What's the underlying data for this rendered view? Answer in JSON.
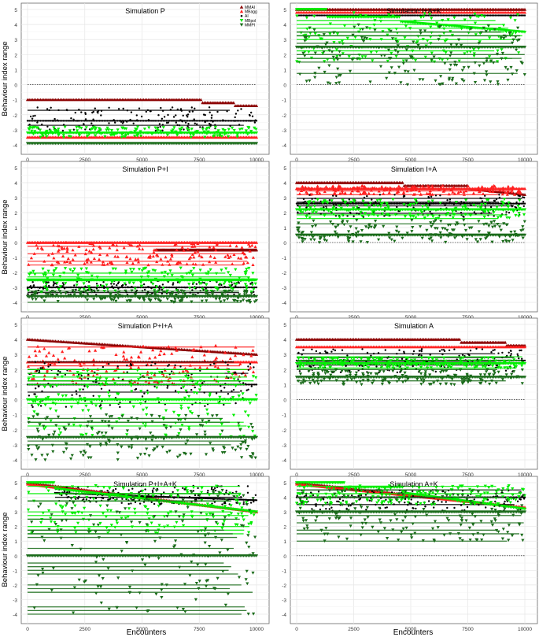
{
  "figure": {
    "ylabel": "Behaviour index range",
    "xlabel": "Encounters"
  },
  "legend": {
    "placement": "top-right of first panel",
    "entries": [
      {
        "label": "MMAI",
        "shape": "triangle-up",
        "color": "#8b0000"
      },
      {
        "label": "MBagg",
        "shape": "triangle-up",
        "color": "#ff2020"
      },
      {
        "label": "AI",
        "shape": "circle",
        "color": "#000000"
      },
      {
        "label": "MBpol",
        "shape": "triangle-down",
        "color": "#00ee00"
      },
      {
        "label": "MMPI",
        "shape": "triangle-down",
        "color": "#1a6b1a"
      }
    ]
  },
  "chart_data": [
    {
      "type": "scatter",
      "title": "Simulation P",
      "xlim": [
        0,
        10000
      ],
      "ylim": [
        -4,
        5
      ],
      "x_ticks": [
        0,
        2500,
        5000,
        7500,
        10000
      ],
      "y_ticks": [
        -4,
        -3,
        -2,
        -1,
        0,
        1,
        2,
        3,
        4,
        5
      ],
      "grid": true,
      "zero_line": true,
      "series": [
        {
          "name": "MMAI",
          "values": [
            [
              0,
              -1
            ],
            [
              7600,
              -1
            ],
            [
              7600,
              -1.2
            ],
            [
              9000,
              -1.2
            ],
            [
              9000,
              -1.4
            ],
            [
              10000,
              -1.4
            ]
          ]
        },
        {
          "name": "MBagg",
          "values": [
            [
              0,
              -3.5
            ],
            [
              10000,
              -3.5
            ]
          ]
        },
        {
          "name": "AI",
          "values": [
            [
              0,
              -2.4
            ],
            [
              10000,
              -2.4
            ]
          ],
          "y_spread": [
            -3.2,
            -1.5
          ]
        },
        {
          "name": "MBpol",
          "values": [
            [
              0,
              -3.2
            ],
            [
              10000,
              -3.2
            ]
          ],
          "y_spread": [
            -3.5,
            -2.8
          ]
        },
        {
          "name": "MMPI",
          "values": [
            [
              0,
              -3.9
            ],
            [
              10000,
              -3.9
            ]
          ]
        }
      ]
    },
    {
      "type": "scatter",
      "title": "Simulation I+A+K",
      "xlim": [
        0,
        10000
      ],
      "ylim": [
        -4,
        5
      ],
      "x_ticks": [
        0,
        2500,
        5000,
        7500,
        10000
      ],
      "y_ticks": [
        -4,
        -3,
        -2,
        -1,
        0,
        1,
        2,
        3,
        4,
        5
      ],
      "grid": true,
      "zero_line": true,
      "series": [
        {
          "name": "MMAI",
          "values": [
            [
              0,
              5
            ],
            [
              10000,
              5
            ]
          ]
        },
        {
          "name": "MBagg",
          "values": [
            [
              0,
              4.8
            ],
            [
              10000,
              4.8
            ]
          ]
        },
        {
          "name": "AI",
          "values": [
            [
              0,
              4.6
            ],
            [
              10000,
              4.6
            ]
          ]
        },
        {
          "name": "MBpol",
          "values": [
            [
              0,
              5
            ],
            [
              1300,
              5
            ],
            [
              1300,
              4.5
            ],
            [
              4500,
              4.5
            ],
            [
              4500,
              4.2
            ],
            [
              10000,
              3.5
            ]
          ],
          "y_spread": [
            1.5,
            4.8
          ]
        },
        {
          "name": "MMPI",
          "values": [
            [
              0,
              2.5
            ],
            [
              10000,
              2.5
            ]
          ],
          "y_spread": [
            0,
            4
          ]
        }
      ]
    },
    {
      "type": "scatter",
      "title": "Simulation P+I",
      "xlim": [
        0,
        10000
      ],
      "ylim": [
        -4,
        5
      ],
      "x_ticks": [
        0,
        2500,
        5000,
        7500,
        10000
      ],
      "y_ticks": [
        -4,
        -3,
        -2,
        -1,
        0,
        1,
        2,
        3,
        4,
        5
      ],
      "grid": true,
      "zero_line": true,
      "series": [
        {
          "name": "MMAI",
          "values": [
            [
              5600,
              -0.5
            ],
            [
              10000,
              -0.5
            ]
          ]
        },
        {
          "name": "MBagg",
          "values": [
            [
              0,
              0
            ],
            [
              10000,
              0
            ]
          ],
          "y_spread": [
            -1.5,
            0
          ]
        },
        {
          "name": "AI",
          "values": [
            [
              0,
              -3
            ],
            [
              10000,
              -3
            ]
          ],
          "y_spread": [
            -3.6,
            -2.5
          ]
        },
        {
          "name": "MBpol",
          "values": [
            [
              0,
              -2.5
            ],
            [
              10000,
              -2.5
            ]
          ],
          "y_spread": [
            -3.3,
            -1.7
          ]
        },
        {
          "name": "MMPI",
          "values": [
            [
              0,
              -3.6
            ],
            [
              10000,
              -3.6
            ]
          ],
          "y_spread": [
            -4,
            -3.2
          ]
        }
      ]
    },
    {
      "type": "scatter",
      "title": "Simulation I+A",
      "xlim": [
        0,
        10000
      ],
      "ylim": [
        -4,
        5
      ],
      "x_ticks": [
        0,
        2500,
        5000,
        7500,
        10000
      ],
      "y_ticks": [
        -4,
        -3,
        -2,
        -1,
        0,
        1,
        2,
        3,
        4,
        5
      ],
      "grid": true,
      "zero_line": true,
      "series": [
        {
          "name": "MMAI",
          "values": [
            [
              0,
              4
            ],
            [
              4700,
              4
            ],
            [
              4700,
              3.8
            ],
            [
              7500,
              3.8
            ],
            [
              7500,
              3.6
            ],
            [
              10000,
              3.2
            ]
          ]
        },
        {
          "name": "MBagg",
          "values": [
            [
              0,
              3.6
            ],
            [
              10000,
              3.6
            ]
          ],
          "y_spread": [
            3.2,
            3.8
          ]
        },
        {
          "name": "AI",
          "values": [
            [
              0,
              2.6
            ],
            [
              10000,
              2.6
            ]
          ],
          "y_spread": [
            1.7,
            3.2
          ]
        },
        {
          "name": "MBpol",
          "values": [
            [
              0,
              2.2
            ],
            [
              10000,
              2.2
            ]
          ],
          "y_spread": [
            1.6,
            2.9
          ]
        },
        {
          "name": "MMPI",
          "values": [
            [
              0,
              0.5
            ],
            [
              10000,
              0.5
            ]
          ],
          "y_spread": [
            0,
            1.5
          ]
        }
      ]
    },
    {
      "type": "scatter",
      "title": "Simulation P+I+A",
      "xlim": [
        0,
        10000
      ],
      "ylim": [
        -4,
        5
      ],
      "x_ticks": [
        0,
        2500,
        5000,
        7500,
        10000
      ],
      "y_ticks": [
        -4,
        -3,
        -2,
        -1,
        0,
        1,
        2,
        3,
        4,
        5
      ],
      "grid": true,
      "zero_line": true,
      "series": [
        {
          "name": "MMAI",
          "values": [
            [
              0,
              4
            ],
            [
              10000,
              3
            ]
          ]
        },
        {
          "name": "MBagg",
          "values": [
            [
              0,
              2.5
            ],
            [
              10000,
              2.5
            ]
          ],
          "y_spread": [
            1,
            3.6
          ]
        },
        {
          "name": "AI",
          "values": [
            [
              0,
              1
            ],
            [
              10000,
              1
            ]
          ],
          "y_spread": [
            -0.5,
            2.5
          ]
        },
        {
          "name": "MBpol",
          "values": [
            [
              0,
              0
            ],
            [
              10000,
              0
            ]
          ],
          "y_spread": [
            -2.5,
            2
          ]
        },
        {
          "name": "MMPI",
          "values": [
            [
              0,
              -2.5
            ],
            [
              10000,
              -2.5
            ]
          ],
          "y_spread": [
            -4,
            -1
          ]
        }
      ]
    },
    {
      "type": "scatter",
      "title": "Simulation A",
      "xlim": [
        0,
        10000
      ],
      "ylim": [
        -4,
        5
      ],
      "x_ticks": [
        0,
        2500,
        5000,
        7500,
        10000
      ],
      "y_ticks": [
        -4,
        -3,
        -2,
        -1,
        0,
        1,
        2,
        3,
        4,
        5
      ],
      "grid": true,
      "zero_line": true,
      "series": [
        {
          "name": "MMAI",
          "values": [
            [
              0,
              4
            ],
            [
              7200,
              4
            ],
            [
              7200,
              3.8
            ],
            [
              9200,
              3.8
            ],
            [
              9200,
              3.6
            ],
            [
              10000,
              3.6
            ]
          ]
        },
        {
          "name": "MBagg",
          "values": [
            [
              0,
              3.5
            ],
            [
              10000,
              3.5
            ]
          ]
        },
        {
          "name": "AI",
          "values": [
            [
              0,
              2.6
            ],
            [
              10000,
              2.6
            ]
          ],
          "y_spread": [
            1.8,
            3.4
          ]
        },
        {
          "name": "MBpol",
          "values": [
            [
              0,
              2.4
            ],
            [
              10000,
              2.4
            ]
          ],
          "y_spread": [
            2.1,
            2.8
          ]
        },
        {
          "name": "MMPI",
          "values": [
            [
              0,
              1.5
            ],
            [
              10000,
              1.5
            ]
          ],
          "y_spread": [
            1,
            2
          ]
        }
      ]
    },
    {
      "type": "scatter",
      "title": "Simulation P+I+A+K",
      "xlim": [
        0,
        10000
      ],
      "ylim": [
        -4,
        5
      ],
      "x_ticks": [
        0,
        2500,
        5000,
        7500,
        10000
      ],
      "y_ticks": [
        -4,
        -3,
        -2,
        -1,
        0,
        1,
        2,
        3,
        4,
        5
      ],
      "grid": true,
      "zero_line": true,
      "series": [
        {
          "name": "MMAI",
          "values": [
            [
              0,
              5
            ],
            [
              10000,
              3
            ]
          ]
        },
        {
          "name": "MBagg",
          "values": [
            [
              0,
              4.9
            ],
            [
              10000,
              3
            ]
          ]
        },
        {
          "name": "AI",
          "values": [
            [
              1200,
              4.3
            ],
            [
              10000,
              3.8
            ]
          ],
          "y_spread": [
            3.5,
            4.8
          ]
        },
        {
          "name": "MBpol",
          "values": [
            [
              0,
              5
            ],
            [
              1200,
              5
            ],
            [
              1200,
              4.6
            ],
            [
              10000,
              3
            ]
          ],
          "y_spread": [
            1.5,
            4.8
          ]
        },
        {
          "name": "MMPI",
          "values": [
            [
              0,
              0
            ],
            [
              10000,
              0
            ]
          ],
          "y_spread": [
            -4,
            4.5
          ]
        }
      ]
    },
    {
      "type": "scatter",
      "title": "Simulation A+K",
      "xlim": [
        0,
        10000
      ],
      "ylim": [
        -4,
        5
      ],
      "x_ticks": [
        0,
        2500,
        5000,
        7500,
        10000
      ],
      "y_ticks": [
        -4,
        -3,
        -2,
        -1,
        0,
        1,
        2,
        3,
        4,
        5
      ],
      "grid": true,
      "zero_line": true,
      "series": [
        {
          "name": "MMAI",
          "values": [
            [
              0,
              5
            ],
            [
              10000,
              3.3
            ]
          ]
        },
        {
          "name": "MBagg",
          "values": [
            [
              0,
              4.9
            ],
            [
              10000,
              3.3
            ]
          ]
        },
        {
          "name": "AI",
          "values": [
            [
              0,
              4
            ],
            [
              10000,
              4
            ]
          ],
          "y_spread": [
            3,
            4.5
          ]
        },
        {
          "name": "MBpol",
          "values": [
            [
              0,
              5
            ],
            [
              2100,
              5
            ],
            [
              2100,
              4.7
            ],
            [
              4700,
              4.7
            ],
            [
              4700,
              4.3
            ],
            [
              10000,
              3.2
            ]
          ],
          "y_spread": [
            3.5,
            4.8
          ]
        },
        {
          "name": "MMPI",
          "values": [
            [
              0,
              3
            ],
            [
              10000,
              3
            ]
          ],
          "y_spread": [
            1,
            4.5
          ]
        }
      ]
    }
  ]
}
